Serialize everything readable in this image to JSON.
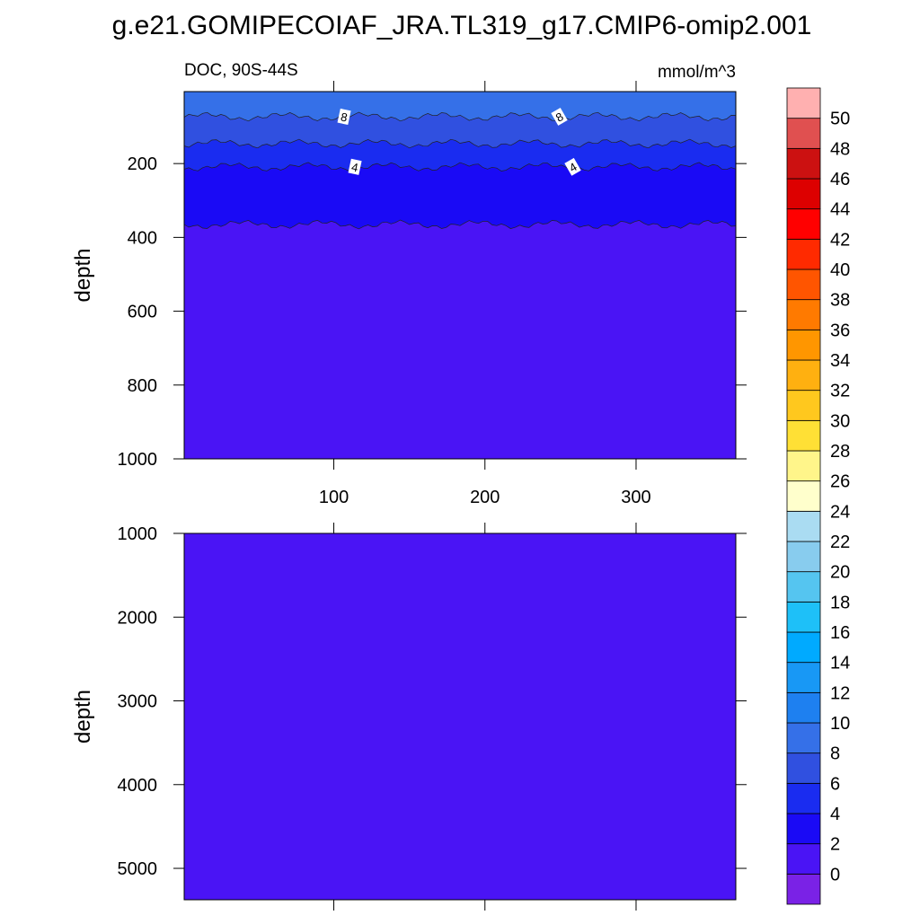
{
  "title": "g.e21.GOMIPECOIAF_JRA.TL319_g17.CMIP6-omip2.001",
  "chart_data": [
    {
      "type": "contour",
      "left_string": "DOC, 90S-44S",
      "right_string": "mmol/m^3",
      "ylabel": "depth",
      "xlim": [
        1,
        366
      ],
      "xticks": [
        100,
        200,
        300
      ],
      "xtick_labels": true,
      "ylim": [
        5,
        1000
      ],
      "yticks": [
        200,
        400,
        600,
        800,
        1000
      ],
      "base_level": 0,
      "contours": [
        {
          "level": 2,
          "depth": 365
        },
        {
          "level": 4,
          "depth": 209
        },
        {
          "level": 6,
          "depth": 146
        },
        {
          "level": 8,
          "depth": 73
        }
      ],
      "labeled_levels": [
        4,
        8
      ]
    },
    {
      "type": "contour",
      "ylabel": "depth",
      "xlim": [
        1,
        366
      ],
      "xticks": [
        100,
        200,
        300
      ],
      "xtick_labels": false,
      "ylim": [
        1000,
        5375
      ],
      "yticks": [
        1000,
        2000,
        3000,
        4000,
        5000
      ],
      "base_level": 0,
      "contours": [],
      "labeled_levels": []
    }
  ],
  "colorbar": {
    "levels": [
      0,
      2,
      4,
      6,
      8,
      10,
      12,
      14,
      16,
      18,
      20,
      22,
      24,
      26,
      28,
      30,
      32,
      34,
      36,
      38,
      40,
      42,
      44,
      46,
      48,
      50
    ],
    "colors": [
      "#7a22e6",
      "#4a14f5",
      "#1a0af5",
      "#1a2cf0",
      "#3050e0",
      "#3570e8",
      "#1e80f0",
      "#1898f5",
      "#00aaff",
      "#1ec0f8",
      "#55c5f0",
      "#88ccee",
      "#aadcf2",
      "#ffffcc",
      "#fff58a",
      "#ffe035",
      "#ffc81e",
      "#ffb010",
      "#ff9600",
      "#ff7a00",
      "#ff5500",
      "#ff2a00",
      "#ff0000",
      "#dd0000",
      "#cc1111",
      "#e05050",
      "#ffb0b0"
    ]
  }
}
